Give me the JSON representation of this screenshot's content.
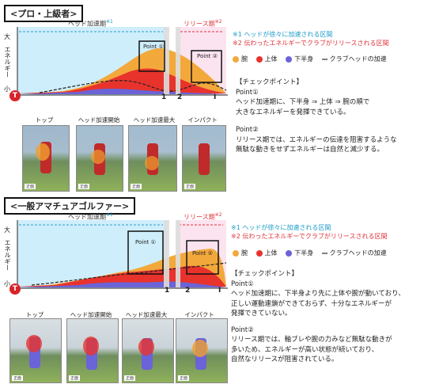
{
  "panels": [
    {
      "title": "<プロ・上級者>",
      "phase_head": "ヘッド加速期",
      "phase_head_sup": "※1",
      "phase_release": "リリース期",
      "phase_release_sup": "※2",
      "y_top": "大",
      "y_label": "エネルギー",
      "y_bottom": "小",
      "t_marker": "T",
      "point1": "Point ①",
      "point2": "Point ②",
      "ticks": [
        "1",
        "2",
        "I"
      ],
      "note1": "※1 ヘッドが徐々に加速される区間",
      "note2": "※2 伝わったエネルギーでクラブがリリースされる区間",
      "legend": {
        "arm": "腕",
        "upper": "上体",
        "lower": "下半身",
        "club": "クラブヘッドの加速"
      },
      "checkpoint_title": "【チェックポイント】",
      "cp1_title": "Point①",
      "cp1_text": [
        "ヘッド加速期に、下半身 ⇒ 上体 ⇒ 腕の順で",
        "大きなエネルギーを発揮できている。"
      ],
      "cp2_title": "Point②",
      "cp2_text": [
        "リリース期では、エネルギーの伝達を阻害するような",
        "無駄な動きをせずエネルギーは自然と減少する。"
      ],
      "photos": [
        "トップ",
        "ヘッド加速開始",
        "ヘッド加速最大",
        "インパクト"
      ],
      "photo_tag": "正面"
    },
    {
      "title": "<一般アマチュアゴルファー>",
      "phase_head": "ヘッド加速期",
      "phase_head_sup": "※1",
      "phase_release": "リリース期",
      "phase_release_sup": "※2",
      "y_top": "大",
      "y_label": "エネルギー",
      "y_bottom": "小",
      "t_marker": "T",
      "point1": "Point ①",
      "point2": "Point ②",
      "ticks": [
        "1",
        "2",
        "I"
      ],
      "note1": "※1 ヘッドが徐々に加速される区間",
      "note2": "※2 伝わったエネルギーでクラブがリリースされる区間",
      "legend": {
        "arm": "腕",
        "upper": "上体",
        "lower": "下半身",
        "club": "クラブヘッドの加速"
      },
      "checkpoint_title": "【チェックポイント】",
      "cp1_title": "Point①",
      "cp1_text": [
        "ヘッド加速期に、下半身より先に上体や腕が動いており、",
        "正しい運動連鎖ができておらず、十分なエネルギーが",
        "発揮できていない。"
      ],
      "cp2_title": "Point②",
      "cp2_text": [
        "リリース期では、軸ブレや腕の力みなど無駄な動きが",
        "多いため、エネルギーが高い状態が続いており、",
        "自然なリリースが阻害されている。"
      ],
      "photos": [
        "トップ",
        "ヘッド加速開始",
        "ヘッド加速最大",
        "インパクト"
      ],
      "photo_tag": "正面"
    }
  ],
  "colors": {
    "arm": "#f3a83b",
    "upper": "#e8332d",
    "lower": "#6b63d8",
    "head_phase": "#cfeefb",
    "release_phase": "#fbe3ef",
    "t_marker": "#d8232a",
    "head_arrow": "#2b9fd0",
    "release_arrow": "#e0323a"
  }
}
